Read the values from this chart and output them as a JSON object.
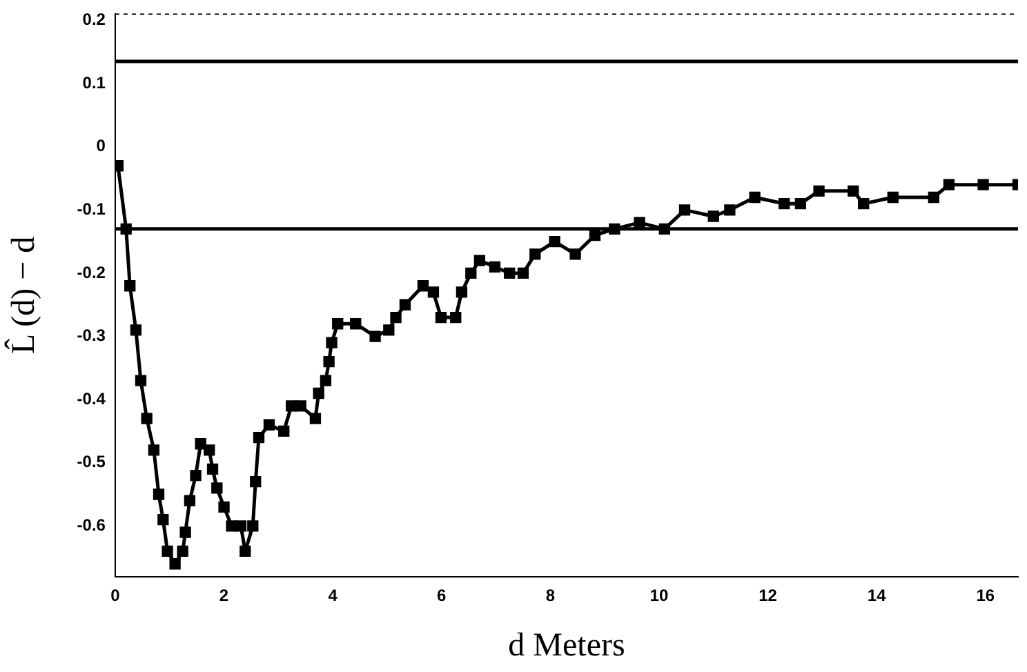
{
  "chart_data": {
    "type": "line",
    "xlabel": "d Meters",
    "ylabel": "L̂ (d) − d",
    "x": [
      0.05,
      0.2,
      0.27,
      0.38,
      0.47,
      0.58,
      0.71,
      0.8,
      0.88,
      0.96,
      1.1,
      1.24,
      1.29,
      1.37,
      1.48,
      1.57,
      1.73,
      1.79,
      1.87,
      2.0,
      2.14,
      2.31,
      2.39,
      2.53,
      2.58,
      2.64,
      2.83,
      3.1,
      3.24,
      3.41,
      3.68,
      3.74,
      3.87,
      3.93,
      3.98,
      4.09,
      4.42,
      4.78,
      5.03,
      5.16,
      5.33,
      5.66,
      5.85,
      5.99,
      6.26,
      6.37,
      6.54,
      6.7,
      6.98,
      7.25,
      7.5,
      7.72,
      8.08,
      8.46,
      8.82,
      9.18,
      9.64,
      10.1,
      10.47,
      11.0,
      11.3,
      11.76,
      12.3,
      12.6,
      12.94,
      13.57,
      13.76,
      14.3,
      15.05,
      15.33,
      15.96,
      16.6
    ],
    "series": [
      {
        "color": "#000000",
        "values": [
          -0.03,
          -0.13,
          -0.22,
          -0.29,
          -0.37,
          -0.43,
          -0.48,
          -0.55,
          -0.59,
          -0.64,
          -0.66,
          -0.64,
          -0.61,
          -0.56,
          -0.52,
          -0.47,
          -0.48,
          -0.51,
          -0.54,
          -0.57,
          -0.6,
          -0.6,
          -0.64,
          -0.6,
          -0.53,
          -0.46,
          -0.44,
          -0.45,
          -0.41,
          -0.41,
          -0.43,
          -0.39,
          -0.37,
          -0.34,
          -0.31,
          -0.28,
          -0.28,
          -0.3,
          -0.29,
          -0.27,
          -0.25,
          -0.22,
          -0.23,
          -0.27,
          -0.27,
          -0.23,
          -0.2,
          -0.18,
          -0.19,
          -0.2,
          -0.2,
          -0.17,
          -0.15,
          -0.17,
          -0.14,
          -0.13,
          -0.12,
          -0.13,
          -0.1,
          -0.11,
          -0.1,
          -0.08,
          -0.09,
          -0.09,
          -0.07,
          -0.07,
          -0.09,
          -0.08,
          -0.08,
          -0.06,
          -0.06,
          -0.06
        ]
      }
    ],
    "xlim": [
      0,
      16.6
    ],
    "xticks": [
      0,
      2,
      4,
      6,
      8,
      10,
      12,
      14,
      16
    ],
    "ylim": [
      -0.68,
      0.21
    ],
    "yticks": [
      -0.6,
      -0.5,
      -0.4,
      -0.3,
      -0.2,
      -0.1,
      0,
      0.1,
      0.2
    ],
    "ref_lines": [
      {
        "axis": "y",
        "value": 0.135,
        "color": "#000000",
        "line_style": "solid"
      },
      {
        "axis": "y",
        "value": -0.13,
        "color": "#000000",
        "line_style": "solid"
      }
    ],
    "grid": false,
    "legend": false,
    "marker": "square",
    "line_style": "solid"
  }
}
